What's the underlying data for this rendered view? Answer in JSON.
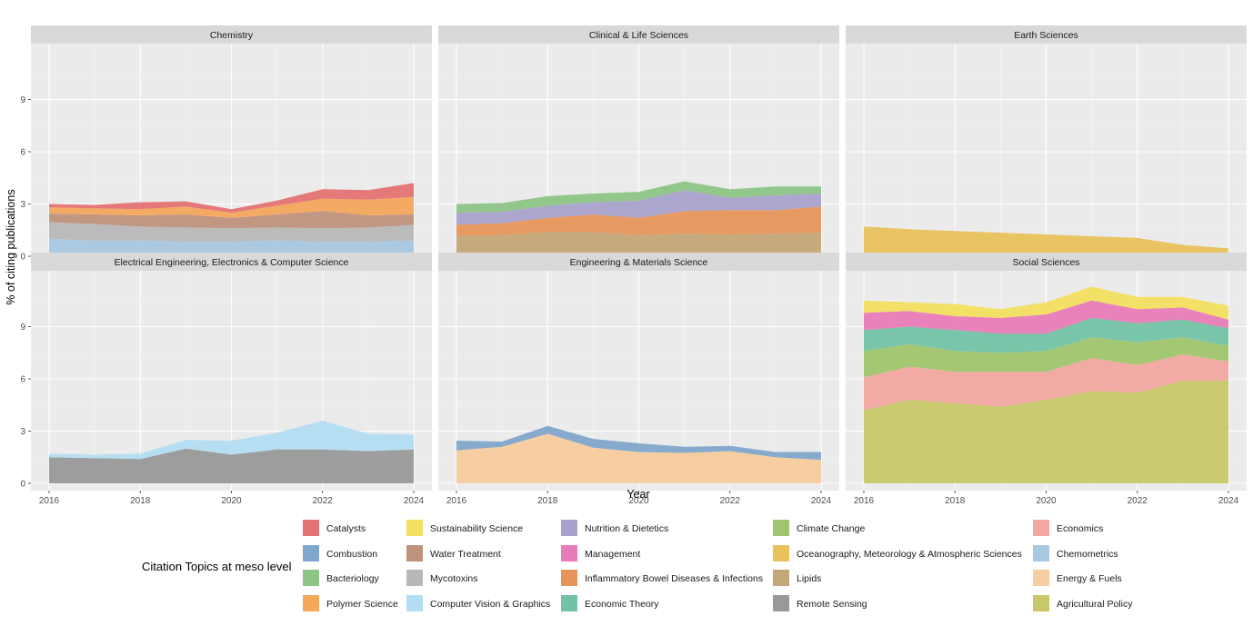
{
  "chart_data": {
    "type": "area",
    "xlabel": "Year",
    "ylabel": "% of citing publications",
    "ylim": [
      0,
      12
    ],
    "yticks": [
      0,
      3,
      6,
      9
    ],
    "xticks": [
      2016,
      2018,
      2020,
      2022,
      2024
    ],
    "x": [
      2016,
      2017,
      2018,
      2019,
      2020,
      2021,
      2022,
      2023,
      2024
    ],
    "grid": true,
    "legend_title": "Citation Topics at meso level",
    "legend_position": "bottom",
    "legend": [
      {
        "name": "Catalysts",
        "color": "#E57373"
      },
      {
        "name": "Combustion",
        "color": "#7FA7CC"
      },
      {
        "name": "Bacteriology",
        "color": "#8DC586"
      },
      {
        "name": "Polymer Science",
        "color": "#F5A75C"
      },
      {
        "name": "Sustainability Science",
        "color": "#F3DF60"
      },
      {
        "name": "Water Treatment",
        "color": "#BF927C"
      },
      {
        "name": "Mycotoxins",
        "color": "#B8B8B8"
      },
      {
        "name": "Computer Vision & Graphics",
        "color": "#B3DDF2"
      },
      {
        "name": "Nutrition & Dietetics",
        "color": "#A9A1CC"
      },
      {
        "name": "Management",
        "color": "#E97CB8"
      },
      {
        "name": "Inflammatory Bowel Diseases & Infections",
        "color": "#E6955A"
      },
      {
        "name": "Economic Theory",
        "color": "#72C3A6"
      },
      {
        "name": "Climate Change",
        "color": "#A0C56E"
      },
      {
        "name": "Oceanography, Meteorology & Atmospheric Sciences",
        "color": "#E8C25C"
      },
      {
        "name": "Lipids",
        "color": "#C4A777"
      },
      {
        "name": "Remote Sensing",
        "color": "#999999"
      },
      {
        "name": "Economics",
        "color": "#F2A8A0"
      },
      {
        "name": "Chemometrics",
        "color": "#A8C8E0"
      },
      {
        "name": "Energy & Fuels",
        "color": "#F7CC9E"
      },
      {
        "name": "Agricultural Policy",
        "color": "#C8C86A"
      }
    ],
    "panels": [
      {
        "title": "Chemistry",
        "series": [
          {
            "name": "Chemometrics",
            "values": [
              1.0,
              0.9,
              0.9,
              0.85,
              0.85,
              0.9,
              0.85,
              0.85,
              0.9
            ]
          },
          {
            "name": "Mycotoxins",
            "values": [
              0.95,
              0.95,
              0.8,
              0.8,
              0.75,
              0.75,
              0.75,
              0.8,
              0.9
            ]
          },
          {
            "name": "Water Treatment",
            "values": [
              0.5,
              0.55,
              0.65,
              0.75,
              0.6,
              0.75,
              1.0,
              0.7,
              0.6
            ]
          },
          {
            "name": "Polymer Science",
            "values": [
              0.35,
              0.35,
              0.35,
              0.45,
              0.3,
              0.5,
              0.7,
              0.9,
              1.0
            ]
          },
          {
            "name": "Catalysts",
            "values": [
              0.2,
              0.2,
              0.4,
              0.3,
              0.2,
              0.3,
              0.55,
              0.55,
              0.8
            ]
          }
        ]
      },
      {
        "title": "Clinical & Life Sciences",
        "series": [
          {
            "name": "Lipids",
            "values": [
              1.2,
              1.2,
              1.4,
              1.4,
              1.2,
              1.3,
              1.25,
              1.3,
              1.35
            ]
          },
          {
            "name": "Inflammatory Bowel Diseases & Infections",
            "values": [
              0.6,
              0.7,
              0.8,
              1.0,
              1.0,
              1.3,
              1.4,
              1.35,
              1.5
            ]
          },
          {
            "name": "Nutrition & Dietetics",
            "values": [
              0.7,
              0.65,
              0.7,
              0.7,
              1.0,
              1.2,
              0.7,
              0.85,
              0.75
            ]
          },
          {
            "name": "Bacteriology",
            "values": [
              0.5,
              0.5,
              0.55,
              0.5,
              0.5,
              0.5,
              0.5,
              0.5,
              0.4
            ]
          }
        ]
      },
      {
        "title": "Earth Sciences",
        "series": [
          {
            "name": "Oceanography, Meteorology & Atmospheric Sciences",
            "values": [
              1.7,
              1.55,
              1.45,
              1.35,
              1.25,
              1.15,
              1.05,
              0.65,
              0.45
            ]
          }
        ]
      },
      {
        "title": "Electrical Engineering, Electronics & Computer Science",
        "series": [
          {
            "name": "Remote Sensing",
            "values": [
              1.5,
              1.45,
              1.4,
              2.0,
              1.65,
              1.95,
              1.95,
              1.85,
              1.95
            ]
          },
          {
            "name": "Computer Vision & Graphics",
            "values": [
              0.2,
              0.2,
              0.3,
              0.5,
              0.8,
              0.95,
              1.65,
              1.0,
              0.85
            ]
          }
        ]
      },
      {
        "title": "Engineering & Materials Science",
        "series": [
          {
            "name": "Energy & Fuels",
            "values": [
              1.9,
              2.1,
              2.85,
              2.05,
              1.8,
              1.75,
              1.85,
              1.5,
              1.35
            ]
          },
          {
            "name": "Combustion",
            "values": [
              0.55,
              0.3,
              0.45,
              0.5,
              0.5,
              0.35,
              0.3,
              0.3,
              0.45
            ]
          }
        ]
      },
      {
        "title": "Social Sciences",
        "series": [
          {
            "name": "Agricultural Policy",
            "values": [
              4.2,
              4.8,
              4.6,
              4.4,
              4.8,
              5.3,
              5.2,
              5.9,
              5.9
            ]
          },
          {
            "name": "Economics",
            "values": [
              1.9,
              1.9,
              1.8,
              2.0,
              1.6,
              1.9,
              1.6,
              1.5,
              1.1
            ]
          },
          {
            "name": "Climate Change",
            "values": [
              1.5,
              1.3,
              1.2,
              1.1,
              1.2,
              1.2,
              1.3,
              1.0,
              0.9
            ]
          },
          {
            "name": "Economic Theory",
            "values": [
              1.2,
              1.0,
              1.2,
              1.1,
              1.0,
              1.1,
              1.1,
              1.0,
              1.0
            ]
          },
          {
            "name": "Management",
            "values": [
              1.0,
              0.9,
              0.8,
              0.9,
              1.1,
              1.0,
              0.8,
              0.7,
              0.5
            ]
          },
          {
            "name": "Sustainability Science",
            "values": [
              0.7,
              0.5,
              0.7,
              0.5,
              0.7,
              0.8,
              0.7,
              0.6,
              0.8
            ]
          }
        ]
      }
    ]
  }
}
